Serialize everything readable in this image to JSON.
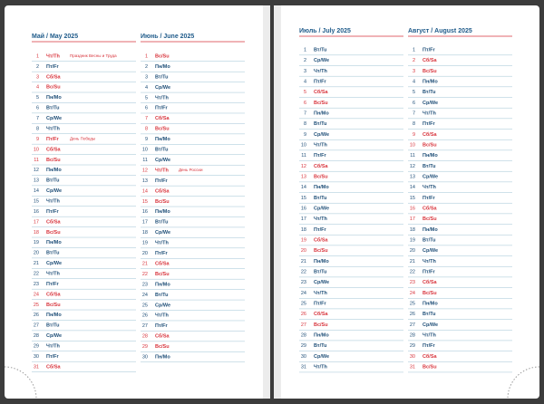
{
  "months": [
    {
      "title": "Май / May 2025",
      "rows": [
        {
          "day": 1,
          "weekday": "Чт/Th",
          "red": true,
          "note": "Праздник Весны и Труда"
        },
        {
          "day": 2,
          "weekday": "Пт/Fr"
        },
        {
          "day": 3,
          "weekday": "Сб/Sa",
          "red": true
        },
        {
          "day": 4,
          "weekday": "Вс/Su",
          "red": true
        },
        {
          "day": 5,
          "weekday": "Пн/Mo"
        },
        {
          "day": 6,
          "weekday": "Вт/Tu"
        },
        {
          "day": 7,
          "weekday": "Ср/We"
        },
        {
          "day": 8,
          "weekday": "Чт/Th"
        },
        {
          "day": 9,
          "weekday": "Пт/Fr",
          "red": true,
          "note": "День Победы"
        },
        {
          "day": 10,
          "weekday": "Сб/Sa",
          "red": true
        },
        {
          "day": 11,
          "weekday": "Вс/Su",
          "red": true
        },
        {
          "day": 12,
          "weekday": "Пн/Mo"
        },
        {
          "day": 13,
          "weekday": "Вт/Tu"
        },
        {
          "day": 14,
          "weekday": "Ср/We"
        },
        {
          "day": 15,
          "weekday": "Чт/Th"
        },
        {
          "day": 16,
          "weekday": "Пт/Fr"
        },
        {
          "day": 17,
          "weekday": "Сб/Sa",
          "red": true
        },
        {
          "day": 18,
          "weekday": "Вс/Su",
          "red": true
        },
        {
          "day": 19,
          "weekday": "Пн/Mo"
        },
        {
          "day": 20,
          "weekday": "Вт/Tu"
        },
        {
          "day": 21,
          "weekday": "Ср/We"
        },
        {
          "day": 22,
          "weekday": "Чт/Th"
        },
        {
          "day": 23,
          "weekday": "Пт/Fr"
        },
        {
          "day": 24,
          "weekday": "Сб/Sa",
          "red": true
        },
        {
          "day": 25,
          "weekday": "Вс/Su",
          "red": true
        },
        {
          "day": 26,
          "weekday": "Пн/Mo"
        },
        {
          "day": 27,
          "weekday": "Вт/Tu"
        },
        {
          "day": 28,
          "weekday": "Ср/We"
        },
        {
          "day": 29,
          "weekday": "Чт/Th"
        },
        {
          "day": 30,
          "weekday": "Пт/Fr"
        },
        {
          "day": 31,
          "weekday": "Сб/Sa",
          "red": true
        }
      ]
    },
    {
      "title": "Июнь / June 2025",
      "rows": [
        {
          "day": 1,
          "weekday": "Вс/Su",
          "red": true
        },
        {
          "day": 2,
          "weekday": "Пн/Mo"
        },
        {
          "day": 3,
          "weekday": "Вт/Tu"
        },
        {
          "day": 4,
          "weekday": "Ср/We"
        },
        {
          "day": 5,
          "weekday": "Чт/Th"
        },
        {
          "day": 6,
          "weekday": "Пт/Fr"
        },
        {
          "day": 7,
          "weekday": "Сб/Sa",
          "red": true
        },
        {
          "day": 8,
          "weekday": "Вс/Su",
          "red": true
        },
        {
          "day": 9,
          "weekday": "Пн/Mo"
        },
        {
          "day": 10,
          "weekday": "Вт/Tu"
        },
        {
          "day": 11,
          "weekday": "Ср/We"
        },
        {
          "day": 12,
          "weekday": "Чт/Th",
          "red": true,
          "note": "День России"
        },
        {
          "day": 13,
          "weekday": "Пт/Fr"
        },
        {
          "day": 14,
          "weekday": "Сб/Sa",
          "red": true
        },
        {
          "day": 15,
          "weekday": "Вс/Su",
          "red": true
        },
        {
          "day": 16,
          "weekday": "Пн/Mo"
        },
        {
          "day": 17,
          "weekday": "Вт/Tu"
        },
        {
          "day": 18,
          "weekday": "Ср/We"
        },
        {
          "day": 19,
          "weekday": "Чт/Th"
        },
        {
          "day": 20,
          "weekday": "Пт/Fr"
        },
        {
          "day": 21,
          "weekday": "Сб/Sa",
          "red": true
        },
        {
          "day": 22,
          "weekday": "Вс/Su",
          "red": true
        },
        {
          "day": 23,
          "weekday": "Пн/Mo"
        },
        {
          "day": 24,
          "weekday": "Вт/Tu"
        },
        {
          "day": 25,
          "weekday": "Ср/We"
        },
        {
          "day": 26,
          "weekday": "Чт/Th"
        },
        {
          "day": 27,
          "weekday": "Пт/Fr"
        },
        {
          "day": 28,
          "weekday": "Сб/Sa",
          "red": true
        },
        {
          "day": 29,
          "weekday": "Вс/Su",
          "red": true
        },
        {
          "day": 30,
          "weekday": "Пн/Mo"
        }
      ]
    },
    {
      "title": "Июль / July 2025",
      "rows": [
        {
          "day": 1,
          "weekday": "Вт/Tu"
        },
        {
          "day": 2,
          "weekday": "Ср/We"
        },
        {
          "day": 3,
          "weekday": "Чт/Th"
        },
        {
          "day": 4,
          "weekday": "Пт/Fr"
        },
        {
          "day": 5,
          "weekday": "Сб/Sa",
          "red": true
        },
        {
          "day": 6,
          "weekday": "Вс/Su",
          "red": true
        },
        {
          "day": 7,
          "weekday": "Пн/Mo"
        },
        {
          "day": 8,
          "weekday": "Вт/Tu"
        },
        {
          "day": 9,
          "weekday": "Ср/We"
        },
        {
          "day": 10,
          "weekday": "Чт/Th"
        },
        {
          "day": 11,
          "weekday": "Пт/Fr"
        },
        {
          "day": 12,
          "weekday": "Сб/Sa",
          "red": true
        },
        {
          "day": 13,
          "weekday": "Вс/Su",
          "red": true
        },
        {
          "day": 14,
          "weekday": "Пн/Mo"
        },
        {
          "day": 15,
          "weekday": "Вт/Tu"
        },
        {
          "day": 16,
          "weekday": "Ср/We"
        },
        {
          "day": 17,
          "weekday": "Чт/Th"
        },
        {
          "day": 18,
          "weekday": "Пт/Fr"
        },
        {
          "day": 19,
          "weekday": "Сб/Sa",
          "red": true
        },
        {
          "day": 20,
          "weekday": "Вс/Su",
          "red": true
        },
        {
          "day": 21,
          "weekday": "Пн/Mo"
        },
        {
          "day": 22,
          "weekday": "Вт/Tu"
        },
        {
          "day": 23,
          "weekday": "Ср/We"
        },
        {
          "day": 24,
          "weekday": "Чт/Th"
        },
        {
          "day": 25,
          "weekday": "Пт/Fr"
        },
        {
          "day": 26,
          "weekday": "Сб/Sa",
          "red": true
        },
        {
          "day": 27,
          "weekday": "Вс/Su",
          "red": true
        },
        {
          "day": 28,
          "weekday": "Пн/Mo"
        },
        {
          "day": 29,
          "weekday": "Вт/Tu"
        },
        {
          "day": 30,
          "weekday": "Ср/We"
        },
        {
          "day": 31,
          "weekday": "Чт/Th"
        }
      ]
    },
    {
      "title": "Август / August 2025",
      "rows": [
        {
          "day": 1,
          "weekday": "Пт/Fr"
        },
        {
          "day": 2,
          "weekday": "Сб/Sa",
          "red": true
        },
        {
          "day": 3,
          "weekday": "Вс/Su",
          "red": true
        },
        {
          "day": 4,
          "weekday": "Пн/Mo"
        },
        {
          "day": 5,
          "weekday": "Вт/Tu"
        },
        {
          "day": 6,
          "weekday": "Ср/We"
        },
        {
          "day": 7,
          "weekday": "Чт/Th"
        },
        {
          "day": 8,
          "weekday": "Пт/Fr"
        },
        {
          "day": 9,
          "weekday": "Сб/Sa",
          "red": true
        },
        {
          "day": 10,
          "weekday": "Вс/Su",
          "red": true
        },
        {
          "day": 11,
          "weekday": "Пн/Mo"
        },
        {
          "day": 12,
          "weekday": "Вт/Tu"
        },
        {
          "day": 13,
          "weekday": "Ср/We"
        },
        {
          "day": 14,
          "weekday": "Чт/Th"
        },
        {
          "day": 15,
          "weekday": "Пт/Fr"
        },
        {
          "day": 16,
          "weekday": "Сб/Sa",
          "red": true
        },
        {
          "day": 17,
          "weekday": "Вс/Su",
          "red": true
        },
        {
          "day": 18,
          "weekday": "Пн/Mo"
        },
        {
          "day": 19,
          "weekday": "Вт/Tu"
        },
        {
          "day": 20,
          "weekday": "Ср/We"
        },
        {
          "day": 21,
          "weekday": "Чт/Th"
        },
        {
          "day": 22,
          "weekday": "Пт/Fr"
        },
        {
          "day": 23,
          "weekday": "Сб/Sa",
          "red": true
        },
        {
          "day": 24,
          "weekday": "Вс/Su",
          "red": true
        },
        {
          "day": 25,
          "weekday": "Пн/Mo"
        },
        {
          "day": 26,
          "weekday": "Вт/Tu"
        },
        {
          "day": 27,
          "weekday": "Ср/We"
        },
        {
          "day": 28,
          "weekday": "Чт/Th"
        },
        {
          "day": 29,
          "weekday": "Пт/Fr"
        },
        {
          "day": 30,
          "weekday": "Сб/Sa",
          "red": true
        },
        {
          "day": 31,
          "weekday": "Вс/Su",
          "red": true
        }
      ]
    }
  ]
}
